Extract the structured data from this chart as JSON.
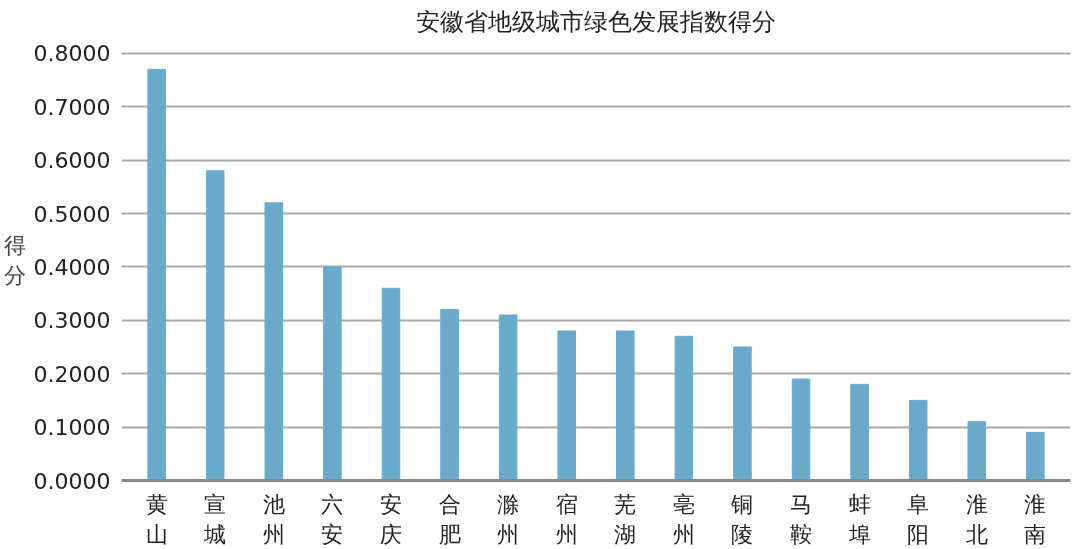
{
  "chart_data": {
    "type": "bar",
    "title": "安徽省地级城市绿色发展指数得分",
    "ylabel": "得分",
    "categories": [
      "黄山",
      "宣城",
      "池州",
      "六安",
      "安庆",
      "合肥",
      "滁州",
      "宿州",
      "芜湖",
      "亳州",
      "铜陵",
      "马鞍",
      "蚌埠",
      "阜阳",
      "淮北",
      "淮南"
    ],
    "values": [
      0.77,
      0.58,
      0.52,
      0.4,
      0.36,
      0.32,
      0.31,
      0.28,
      0.28,
      0.27,
      0.25,
      0.19,
      0.18,
      0.15,
      0.11,
      0.09
    ],
    "color": "#6aabcc",
    "ylim": [
      0,
      0.8
    ],
    "yticks": [
      {
        "value": 0,
        "label": "0.0000"
      },
      {
        "value": 0.1,
        "label": "0.1000"
      },
      {
        "value": 0.2,
        "label": "0.2000"
      },
      {
        "value": 0.3,
        "label": "0.3000"
      },
      {
        "value": 0.4,
        "label": "0.4000"
      },
      {
        "value": 0.5,
        "label": "0.5000"
      },
      {
        "value": 0.6,
        "label": "0.6000"
      },
      {
        "value": 0.7,
        "label": "0.7000"
      },
      {
        "value": 0.8,
        "label": "0.8000"
      }
    ],
    "grid": "y"
  }
}
